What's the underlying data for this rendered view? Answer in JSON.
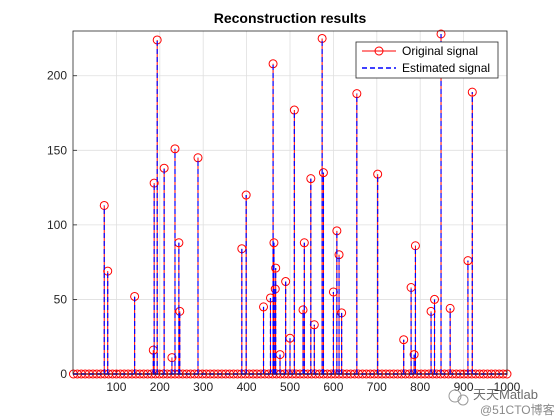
{
  "chart_data": {
    "type": "stem",
    "title": "Reconstruction results",
    "xlabel": "",
    "ylabel": "",
    "xlim": [
      0,
      1000
    ],
    "ylim": [
      0,
      230
    ],
    "xticks": [
      100,
      200,
      300,
      400,
      500,
      600,
      700,
      800,
      900,
      1000
    ],
    "xtick_labels": [
      "100",
      "200",
      "300",
      "400",
      "500",
      "600",
      "700",
      "800",
      "900",
      "1000"
    ],
    "yticks": [
      0,
      50,
      100,
      150,
      200
    ],
    "ytick_labels": [
      "0",
      "50",
      "100",
      "150",
      "200"
    ],
    "grid": true,
    "legend_position": "top-right",
    "series": [
      {
        "name": "Original signal",
        "style": "red stems with open circle markers",
        "color": "#ff0000",
        "points": [
          [
            72,
            113
          ],
          [
            80,
            69
          ],
          [
            142,
            52
          ],
          [
            185,
            16
          ],
          [
            187,
            128
          ],
          [
            194,
            224
          ],
          [
            210,
            138
          ],
          [
            228,
            11
          ],
          [
            235,
            151
          ],
          [
            244,
            88
          ],
          [
            246,
            42
          ],
          [
            288,
            145
          ],
          [
            389,
            84
          ],
          [
            399,
            120
          ],
          [
            439,
            45
          ],
          [
            455,
            51
          ],
          [
            461,
            208
          ],
          [
            463,
            88
          ],
          [
            466,
            57
          ],
          [
            467,
            71
          ],
          [
            477,
            13
          ],
          [
            490,
            62
          ],
          [
            500,
            24
          ],
          [
            510,
            177
          ],
          [
            530,
            43
          ],
          [
            533,
            88
          ],
          [
            548,
            131
          ],
          [
            556,
            33
          ],
          [
            574,
            225
          ],
          [
            577,
            135
          ],
          [
            600,
            55
          ],
          [
            608,
            96
          ],
          [
            613,
            80
          ],
          [
            619,
            41
          ],
          [
            654,
            188
          ],
          [
            702,
            134
          ],
          [
            762,
            23
          ],
          [
            779,
            58
          ],
          [
            786,
            13
          ],
          [
            789,
            86
          ],
          [
            825,
            42
          ],
          [
            833,
            50
          ],
          [
            848,
            228
          ],
          [
            869,
            44
          ],
          [
            910,
            76
          ],
          [
            920,
            189
          ]
        ]
      },
      {
        "name": "Estimated signal",
        "style": "blue dashed stems",
        "color": "#0000ff",
        "points": [
          [
            72,
            113
          ],
          [
            80,
            69
          ],
          [
            142,
            52
          ],
          [
            185,
            16
          ],
          [
            187,
            128
          ],
          [
            194,
            224
          ],
          [
            210,
            138
          ],
          [
            228,
            11
          ],
          [
            235,
            151
          ],
          [
            244,
            88
          ],
          [
            246,
            42
          ],
          [
            288,
            145
          ],
          [
            389,
            84
          ],
          [
            399,
            120
          ],
          [
            439,
            45
          ],
          [
            455,
            51
          ],
          [
            461,
            208
          ],
          [
            463,
            88
          ],
          [
            466,
            57
          ],
          [
            467,
            71
          ],
          [
            477,
            13
          ],
          [
            490,
            62
          ],
          [
            500,
            24
          ],
          [
            510,
            177
          ],
          [
            530,
            43
          ],
          [
            533,
            88
          ],
          [
            548,
            131
          ],
          [
            556,
            33
          ],
          [
            574,
            225
          ],
          [
            577,
            135
          ],
          [
            600,
            55
          ],
          [
            608,
            96
          ],
          [
            613,
            80
          ],
          [
            619,
            41
          ],
          [
            654,
            188
          ],
          [
            702,
            134
          ],
          [
            762,
            23
          ],
          [
            779,
            58
          ],
          [
            786,
            13
          ],
          [
            789,
            86
          ],
          [
            825,
            42
          ],
          [
            833,
            50
          ],
          [
            848,
            228
          ],
          [
            869,
            44
          ],
          [
            910,
            76
          ],
          [
            920,
            189
          ]
        ]
      }
    ],
    "zero_samples": {
      "description": "all remaining samples on the x-axis at value 0 drawn as red circles",
      "x_start": 1,
      "x_end": 1000,
      "step": 9,
      "value": 0
    }
  },
  "watermark": {
    "text": "@51CTO博客",
    "overlay_text": "天天Matlab"
  }
}
